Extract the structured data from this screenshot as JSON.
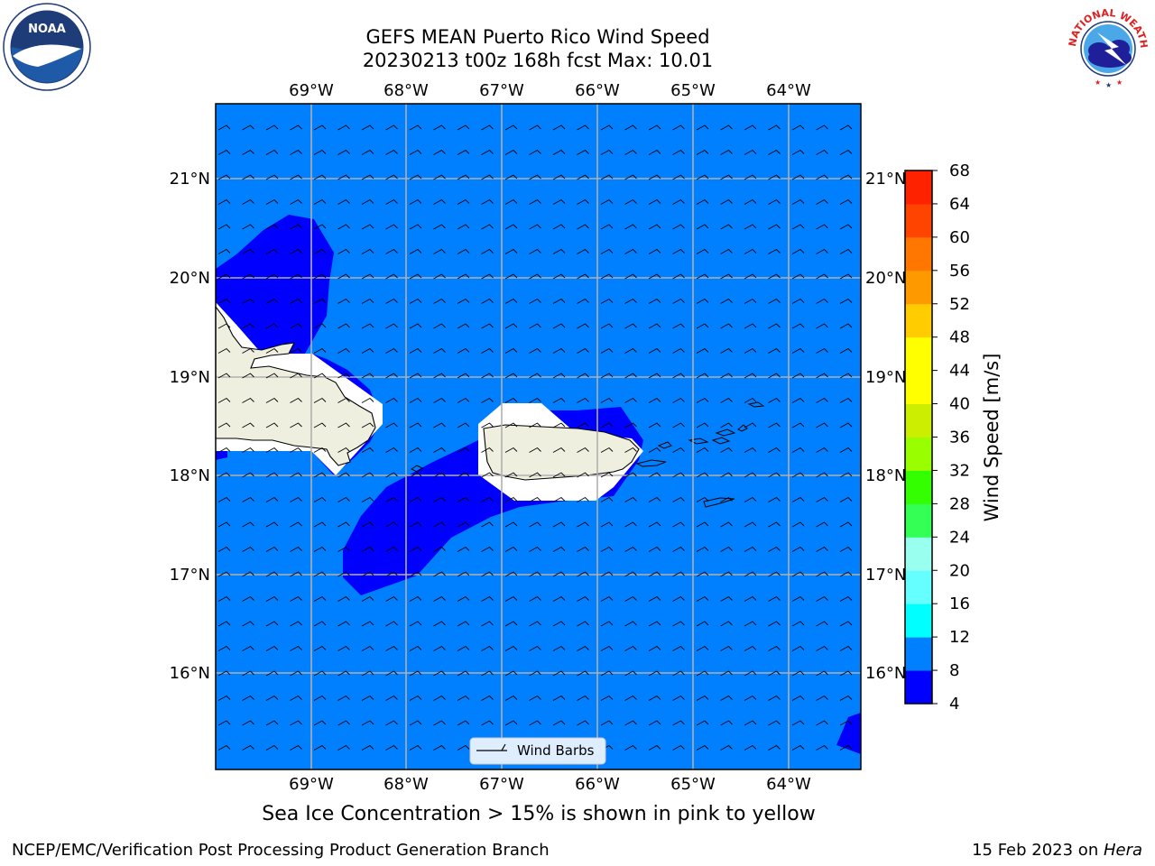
{
  "header": {
    "title_line1": "GEFS MEAN Puerto Rico Wind Speed",
    "title_line2": "20230213 t00z 168h fcst   Max: 10.01"
  },
  "logos": {
    "left": {
      "icon": "noaa-logo",
      "text": "NOAA"
    },
    "right": {
      "icon": "nws-logo",
      "text": "NATIONAL WEATHER SERVICE"
    }
  },
  "map": {
    "lon_labels": [
      "69°W",
      "68°W",
      "67°W",
      "66°W",
      "65°W",
      "64°W"
    ],
    "lat_labels": [
      "21°N",
      "20°N",
      "19°N",
      "18°N",
      "17°N",
      "16°N"
    ],
    "ocean_color": "#0080ff",
    "low_wind_color": "#0000ff",
    "land_color": "#efefdf",
    "legend_label": "Wind Barbs"
  },
  "colorbar": {
    "label": "Wind Speed [m/s]",
    "ticks": [
      "4",
      "8",
      "12",
      "16",
      "20",
      "24",
      "28",
      "32",
      "36",
      "40",
      "44",
      "48",
      "52",
      "56",
      "60",
      "64",
      "68"
    ],
    "colors": [
      "#0000ff",
      "#0080ff",
      "#00ffff",
      "#66ffff",
      "#99ffee",
      "#33ff55",
      "#33ff00",
      "#99ff00",
      "#ccee00",
      "#ffff00",
      "#ffff00",
      "#ffcc00",
      "#ff9900",
      "#ff7700",
      "#ff4400",
      "#ff2200",
      "#ff0000"
    ]
  },
  "caption": "Sea Ice Concentration > 15% is shown in pink to yellow",
  "footer": {
    "left": "NCEP/EMC/Verification Post Processing Product Generation Branch",
    "right_date": "15 Feb 2023 on ",
    "right_host": "Hera"
  }
}
